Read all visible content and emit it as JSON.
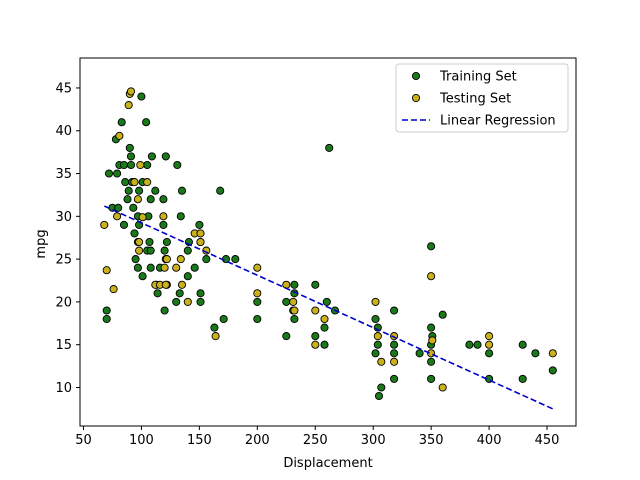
{
  "chart_data": {
    "type": "scatter",
    "title": "",
    "xlabel": "Displacement",
    "ylabel": "mpg",
    "xlim": [
      47,
      475
    ],
    "ylim": [
      5.5,
      48.5
    ],
    "xticks": [
      50,
      100,
      150,
      200,
      250,
      300,
      350,
      400,
      450
    ],
    "yticks": [
      10,
      15,
      20,
      25,
      30,
      35,
      40,
      45
    ],
    "grid": false,
    "legend_position": "top-right",
    "series": [
      {
        "name": "Training Set",
        "kind": "scatter",
        "color": "#1a7a1a",
        "edge": "#000000",
        "points": [
          [
            70,
            19
          ],
          [
            70,
            18
          ],
          [
            72,
            35
          ],
          [
            75,
            31
          ],
          [
            78,
            39
          ],
          [
            79,
            35
          ],
          [
            80,
            31
          ],
          [
            81,
            36
          ],
          [
            83,
            41
          ],
          [
            85,
            36
          ],
          [
            85,
            29
          ],
          [
            86,
            34
          ],
          [
            88,
            32
          ],
          [
            89,
            33
          ],
          [
            90,
            38
          ],
          [
            91,
            36
          ],
          [
            91,
            37
          ],
          [
            92,
            34
          ],
          [
            93,
            31
          ],
          [
            94,
            28
          ],
          [
            95,
            25
          ],
          [
            97,
            24
          ],
          [
            97,
            27
          ],
          [
            97,
            30
          ],
          [
            98,
            29
          ],
          [
            98,
            33
          ],
          [
            100,
            44
          ],
          [
            101,
            23
          ],
          [
            101,
            34
          ],
          [
            104,
            41
          ],
          [
            105,
            36
          ],
          [
            105,
            26
          ],
          [
            106,
            30
          ],
          [
            107,
            27
          ],
          [
            108,
            24
          ],
          [
            108,
            26
          ],
          [
            108,
            32
          ],
          [
            109,
            37
          ],
          [
            112,
            33
          ],
          [
            113,
            22
          ],
          [
            114,
            21
          ],
          [
            116,
            24
          ],
          [
            119,
            29
          ],
          [
            119,
            32
          ],
          [
            120,
            26
          ],
          [
            120,
            19
          ],
          [
            121,
            25
          ],
          [
            121,
            37
          ],
          [
            122,
            22
          ],
          [
            122,
            27
          ],
          [
            130,
            20
          ],
          [
            131,
            36
          ],
          [
            133,
            21
          ],
          [
            134,
            30
          ],
          [
            135,
            33
          ],
          [
            140,
            23
          ],
          [
            140,
            26
          ],
          [
            141,
            27
          ],
          [
            146,
            24
          ],
          [
            150,
            29
          ],
          [
            151,
            27
          ],
          [
            151,
            20
          ],
          [
            151,
            21
          ],
          [
            156,
            25
          ],
          [
            163,
            17
          ],
          [
            168,
            33
          ],
          [
            171,
            18
          ],
          [
            173,
            25
          ],
          [
            181,
            25
          ],
          [
            200,
            18
          ],
          [
            200,
            20
          ],
          [
            225,
            16
          ],
          [
            225,
            20
          ],
          [
            231,
            19
          ],
          [
            232,
            22
          ],
          [
            232,
            18
          ],
          [
            250,
            22
          ],
          [
            250,
            16
          ],
          [
            258,
            17
          ],
          [
            258,
            15
          ],
          [
            260,
            20
          ],
          [
            262,
            38
          ],
          [
            267,
            19
          ],
          [
            302,
            18
          ],
          [
            302,
            14
          ],
          [
            304,
            15
          ],
          [
            305,
            9
          ],
          [
            307,
            10
          ],
          [
            318,
            15
          ],
          [
            318,
            14
          ],
          [
            318,
            11
          ],
          [
            318,
            19
          ],
          [
            340,
            14
          ],
          [
            350,
            17
          ],
          [
            350,
            15
          ],
          [
            350,
            26.5
          ],
          [
            350,
            13
          ],
          [
            351,
            16
          ],
          [
            360,
            18.5
          ],
          [
            383,
            15
          ],
          [
            390,
            15
          ],
          [
            400,
            11
          ],
          [
            400,
            14
          ],
          [
            429,
            15
          ],
          [
            429,
            11
          ],
          [
            440,
            14
          ],
          [
            455,
            12
          ],
          [
            350,
            11
          ],
          [
            304,
            17
          ],
          [
            232,
            21
          ]
        ]
      },
      {
        "name": "Testing Set",
        "kind": "scatter",
        "color": "#ccb21a",
        "edge": "#000000",
        "points": [
          [
            68,
            29
          ],
          [
            70,
            23.7
          ],
          [
            76,
            21.5
          ],
          [
            79,
            30
          ],
          [
            81,
            39.4
          ],
          [
            89,
            43
          ],
          [
            90,
            44.3
          ],
          [
            91,
            44.6
          ],
          [
            94,
            34
          ],
          [
            97,
            32
          ],
          [
            98,
            27
          ],
          [
            98,
            26
          ],
          [
            99,
            36
          ],
          [
            101,
            29.9
          ],
          [
            105,
            34
          ],
          [
            112,
            22
          ],
          [
            116,
            22
          ],
          [
            119,
            30
          ],
          [
            120,
            24
          ],
          [
            121,
            22
          ],
          [
            122,
            25
          ],
          [
            130,
            24
          ],
          [
            134,
            25
          ],
          [
            135,
            22
          ],
          [
            140,
            20
          ],
          [
            146,
            28
          ],
          [
            151,
            28
          ],
          [
            151,
            27
          ],
          [
            156,
            26
          ],
          [
            164,
            16
          ],
          [
            200,
            21
          ],
          [
            200,
            24
          ],
          [
            225,
            22
          ],
          [
            231,
            20
          ],
          [
            232,
            19
          ],
          [
            250,
            19
          ],
          [
            250,
            15
          ],
          [
            258,
            18
          ],
          [
            302,
            20
          ],
          [
            304,
            16
          ],
          [
            307,
            13
          ],
          [
            318,
            16
          ],
          [
            318,
            13
          ],
          [
            350,
            23
          ],
          [
            350,
            14
          ],
          [
            351,
            15.5
          ],
          [
            360,
            10
          ],
          [
            400,
            16
          ],
          [
            400,
            15
          ],
          [
            455,
            14
          ]
        ]
      },
      {
        "name": "Linear Regression",
        "kind": "line",
        "color": "#0000cc",
        "dash": "dashed",
        "points": [
          [
            68,
            31.2
          ],
          [
            455,
            7.5
          ]
        ]
      }
    ]
  }
}
